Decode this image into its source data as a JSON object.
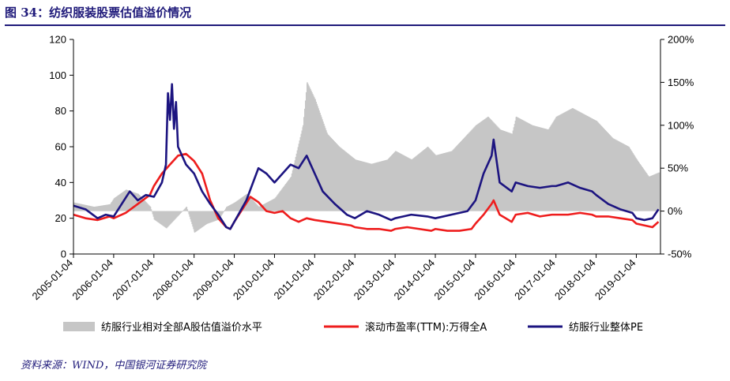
{
  "header": {
    "figure_title": "图 34：纺织服装股票估值溢价情况"
  },
  "footer": {
    "source": "资料来源：WIND，中国银河证券研究院"
  },
  "chart_data": {
    "type": "line",
    "title": "",
    "ylim_left": [
      0,
      120
    ],
    "ylim_right": [
      -50,
      200
    ],
    "left_ticks": [
      "0",
      "20",
      "40",
      "60",
      "80",
      "100",
      "120"
    ],
    "right_ticks": [
      "-50%",
      "0%",
      "50%",
      "100%",
      "150%",
      "200%"
    ],
    "x_ticks": [
      "2005-01-04",
      "2006-01-04",
      "2007-01-04",
      "2008-01-04",
      "2009-01-04",
      "2010-01-04",
      "2011-01-04",
      "2012-01-04",
      "2013-01-04",
      "2014-01-04",
      "2015-01-04",
      "2016-01-04",
      "2017-01-04",
      "2018-01-04",
      "2019-01-04"
    ],
    "grid": false,
    "legend_position": "bottom",
    "series": [
      {
        "name": "纺服行业相对全部A股估值溢价水平",
        "type": "area",
        "axis": "right",
        "color": "#c6c6c6",
        "x": [
          2005.0,
          2005.5,
          2005.9,
          2006.0,
          2006.3,
          2006.6,
          2006.9,
          2007.0,
          2007.3,
          2007.6,
          2007.8,
          2008.0,
          2008.3,
          2008.6,
          2008.8,
          2009.0,
          2009.3,
          2009.6,
          2010.0,
          2010.4,
          2010.7,
          2010.8,
          2011.0,
          2011.3,
          2011.6,
          2012.0,
          2012.4,
          2012.8,
          2013.0,
          2013.4,
          2013.8,
          2014.0,
          2014.4,
          2014.8,
          2015.0,
          2015.3,
          2015.6,
          2015.9,
          2016.0,
          2016.4,
          2016.8,
          2017.0,
          2017.4,
          2017.8,
          2018.0,
          2018.4,
          2018.8,
          2019.0,
          2019.3,
          2019.55
        ],
        "values": [
          10,
          5,
          8,
          15,
          25,
          20,
          5,
          -10,
          -20,
          -5,
          5,
          -25,
          -15,
          -10,
          5,
          10,
          20,
          5,
          15,
          40,
          100,
          150,
          130,
          90,
          75,
          60,
          55,
          60,
          70,
          60,
          75,
          65,
          70,
          90,
          100,
          110,
          95,
          90,
          110,
          100,
          95,
          110,
          120,
          110,
          105,
          85,
          75,
          60,
          40,
          45
        ]
      },
      {
        "name": "滚动市盈率(TTM):万得全A",
        "type": "line",
        "axis": "left",
        "color": "#ee1d1d",
        "x": [
          2005.0,
          2005.3,
          2005.6,
          2005.9,
          2006.0,
          2006.3,
          2006.6,
          2006.9,
          2007.0,
          2007.2,
          2007.4,
          2007.6,
          2007.8,
          2008.0,
          2008.2,
          2008.4,
          2008.6,
          2008.8,
          2008.9,
          2009.0,
          2009.2,
          2009.4,
          2009.6,
          2009.8,
          2010.0,
          2010.2,
          2010.4,
          2010.6,
          2010.8,
          2011.0,
          2011.3,
          2011.6,
          2011.9,
          2012.0,
          2012.3,
          2012.6,
          2012.9,
          2013.0,
          2013.3,
          2013.6,
          2013.9,
          2014.0,
          2014.3,
          2014.6,
          2014.9,
          2015.0,
          2015.2,
          2015.4,
          2015.45,
          2015.6,
          2015.9,
          2016.0,
          2016.3,
          2016.6,
          2016.9,
          2017.0,
          2017.3,
          2017.6,
          2017.9,
          2018.0,
          2018.3,
          2018.6,
          2018.9,
          2019.0,
          2019.2,
          2019.4,
          2019.55
        ],
        "values": [
          22,
          20,
          19,
          21,
          20,
          23,
          28,
          33,
          38,
          45,
          50,
          55,
          56,
          52,
          45,
          30,
          20,
          15,
          14,
          18,
          25,
          32,
          29,
          24,
          23,
          24,
          20,
          18,
          20,
          19,
          18,
          17,
          16,
          15,
          14,
          14,
          13,
          14,
          15,
          14,
          13,
          14,
          13,
          13,
          14,
          17,
          22,
          28,
          30,
          22,
          18,
          22,
          23,
          21,
          22,
          22,
          22,
          23,
          22,
          21,
          21,
          20,
          19,
          17,
          16,
          15,
          18
        ]
      },
      {
        "name": "纺服行业整体PE",
        "type": "line",
        "axis": "left",
        "color": "#1c1480",
        "x": [
          2005.0,
          2005.3,
          2005.6,
          2005.8,
          2006.0,
          2006.2,
          2006.4,
          2006.6,
          2006.8,
          2007.0,
          2007.2,
          2007.3,
          2007.35,
          2007.4,
          2007.45,
          2007.5,
          2007.55,
          2007.6,
          2007.7,
          2007.8,
          2008.0,
          2008.2,
          2008.4,
          2008.6,
          2008.8,
          2008.9,
          2009.0,
          2009.3,
          2009.6,
          2009.8,
          2010.0,
          2010.2,
          2010.4,
          2010.6,
          2010.8,
          2010.9,
          2011.0,
          2011.2,
          2011.5,
          2011.8,
          2012.0,
          2012.3,
          2012.6,
          2012.9,
          2013.0,
          2013.4,
          2013.8,
          2014.0,
          2014.4,
          2014.8,
          2015.0,
          2015.2,
          2015.4,
          2015.45,
          2015.6,
          2015.9,
          2016.0,
          2016.3,
          2016.6,
          2016.9,
          2017.0,
          2017.3,
          2017.6,
          2017.9,
          2018.0,
          2018.3,
          2018.6,
          2018.9,
          2019.0,
          2019.2,
          2019.4,
          2019.55
        ],
        "values": [
          27,
          25,
          20,
          22,
          21,
          28,
          35,
          30,
          33,
          32,
          40,
          50,
          90,
          75,
          95,
          70,
          85,
          60,
          55,
          50,
          45,
          35,
          28,
          22,
          15,
          14,
          18,
          30,
          48,
          45,
          40,
          45,
          50,
          48,
          55,
          50,
          45,
          35,
          28,
          22,
          20,
          24,
          22,
          19,
          20,
          22,
          21,
          20,
          22,
          24,
          30,
          45,
          55,
          64,
          40,
          35,
          40,
          38,
          37,
          38,
          38,
          40,
          37,
          35,
          33,
          28,
          25,
          23,
          20,
          19,
          20,
          25
        ]
      }
    ]
  }
}
